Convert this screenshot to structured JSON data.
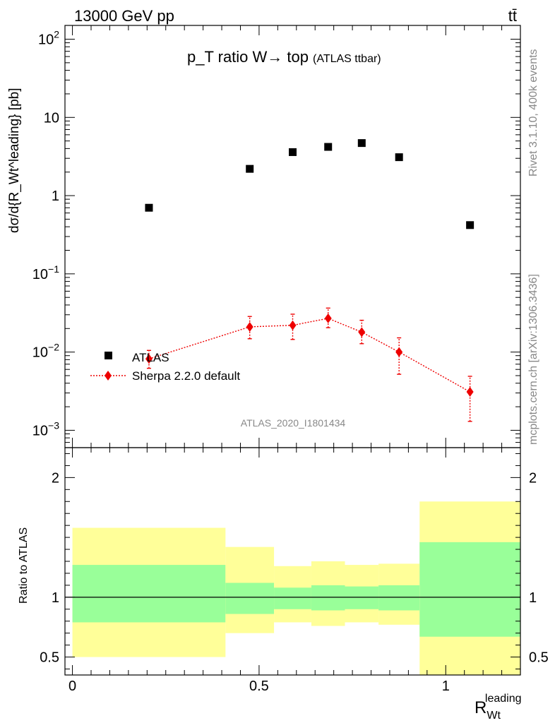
{
  "header": {
    "left": "13000 GeV pp",
    "right": "tt̄"
  },
  "side_labels": {
    "rivet": "Rivet 3.1.10,  400k events",
    "mcplots": "mcplots.cern.ch [arXiv:1306.3436]"
  },
  "analysis_id": "ATLAS_2020_I1801434",
  "colors": {
    "data": "#000000",
    "mc": "#ee0000",
    "band_inner": "#99ff99",
    "band_outer": "#ffff99"
  },
  "chart_data": [
    {
      "type": "scatter",
      "panel": "main",
      "title": "p_T ratio W→ top",
      "title_suffix": "(ATLAS ttbar)",
      "ylabel": "dσ/d{R_Wt^leading} [pb]",
      "yscale": "log",
      "ylim": [
        0.0006,
        150
      ],
      "xlim": [
        -0.02,
        1.2
      ],
      "y_ticks": [
        "10^-3",
        "10^-2",
        "10^-1",
        "1",
        "10",
        "10^2"
      ],
      "legend_position": "lower-left",
      "series": [
        {
          "name": "ATLAS",
          "marker": "square",
          "x": [
            0.205,
            0.475,
            0.59,
            0.685,
            0.775,
            0.875,
            1.065
          ],
          "y": [
            0.7,
            2.2,
            3.6,
            4.2,
            4.7,
            3.1,
            0.42
          ]
        },
        {
          "name": "Sherpa 2.2.0 default",
          "marker": "diamond",
          "line": "dotted",
          "x": [
            0.205,
            0.475,
            0.59,
            0.685,
            0.775,
            0.875,
            1.065
          ],
          "y": [
            0.0082,
            0.021,
            0.022,
            0.027,
            0.018,
            0.01,
            0.0031
          ],
          "y_low": [
            0.0062,
            0.0148,
            0.0145,
            0.0205,
            0.0128,
            0.0052,
            0.0013
          ],
          "y_high": [
            0.0105,
            0.0285,
            0.0305,
            0.0365,
            0.0255,
            0.0152,
            0.0049
          ]
        }
      ]
    },
    {
      "type": "area",
      "panel": "ratio",
      "ylabel": "Ratio to ATLAS",
      "xlabel": "R_Wt^leading",
      "ylim": [
        0.35,
        2.25
      ],
      "y_ticks": [
        0.5,
        1,
        2
      ],
      "x_ticks": [
        0,
        0.5,
        1
      ],
      "bins": [
        {
          "x_low": 0.0,
          "x_high": 0.41,
          "inner": [
            0.79,
            1.27
          ],
          "outer": [
            0.5,
            1.58
          ]
        },
        {
          "x_low": 0.41,
          "x_high": 0.54,
          "inner": [
            0.86,
            1.12
          ],
          "outer": [
            0.7,
            1.42
          ]
        },
        {
          "x_low": 0.54,
          "x_high": 0.64,
          "inner": [
            0.9,
            1.08
          ],
          "outer": [
            0.79,
            1.26
          ]
        },
        {
          "x_low": 0.64,
          "x_high": 0.73,
          "inner": [
            0.89,
            1.1
          ],
          "outer": [
            0.76,
            1.3
          ]
        },
        {
          "x_low": 0.73,
          "x_high": 0.82,
          "inner": [
            0.9,
            1.09
          ],
          "outer": [
            0.79,
            1.27
          ]
        },
        {
          "x_low": 0.82,
          "x_high": 0.93,
          "inner": [
            0.89,
            1.1
          ],
          "outer": [
            0.77,
            1.28
          ]
        },
        {
          "x_low": 0.93,
          "x_high": 1.2,
          "inner": [
            0.67,
            1.46
          ],
          "outer": [
            0.3,
            1.8
          ]
        }
      ],
      "reference_line": 1
    }
  ]
}
